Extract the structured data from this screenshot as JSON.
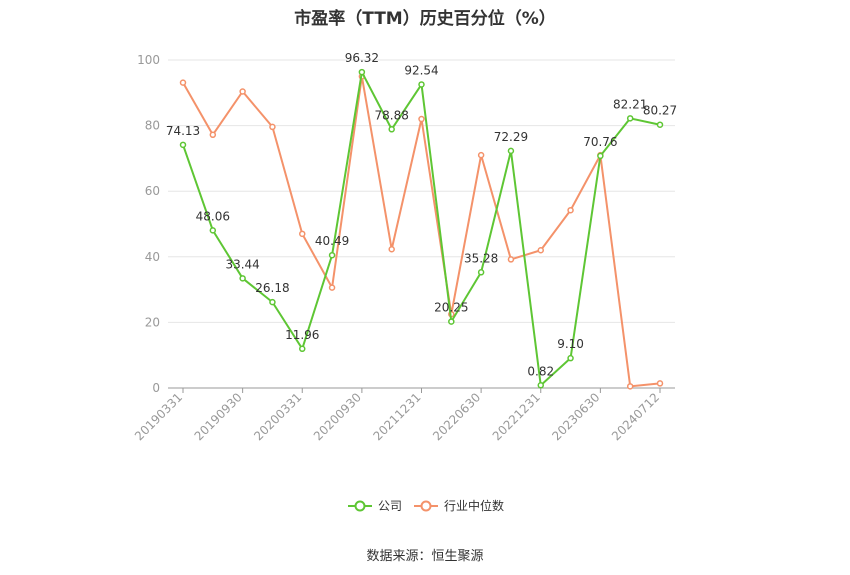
{
  "chart_data": {
    "type": "line",
    "title": "市盈率（TTM）历史百分位（%）",
    "source": "数据来源：恒生聚源",
    "ylim": [
      0,
      100
    ],
    "yticks": [
      "0",
      "20",
      "40",
      "60",
      "80",
      "100"
    ],
    "xtick_labels": [
      "20190331",
      "20190930",
      "20200331",
      "20200930",
      "20211231",
      "20220630",
      "20221231",
      "20230630",
      "20240712"
    ],
    "xtick_indices": [
      0,
      2,
      4,
      6,
      8,
      10,
      12,
      14,
      16
    ],
    "series": [
      {
        "name": "公司",
        "color": "#5ec634",
        "values": [
          74.13,
          48.06,
          33.44,
          26.18,
          11.96,
          40.49,
          96.32,
          78.88,
          92.54,
          20.25,
          35.28,
          72.29,
          0.82,
          9.1,
          70.76,
          82.21,
          80.27
        ],
        "labels": [
          "74.13",
          "48.06",
          "33.44",
          "26.18",
          "11.96",
          "40.49",
          "96.32",
          "78.88",
          "92.54",
          "20.25",
          "35.28",
          "72.29",
          "0.82",
          "9.10",
          "70.76",
          "82.21",
          "80.27"
        ]
      },
      {
        "name": "行业中位数",
        "color": "#f4926a",
        "values": [
          93.1,
          77.2,
          90.4,
          79.6,
          47.0,
          30.6,
          95.0,
          42.3,
          82.0,
          22.5,
          71.0,
          39.2,
          42.0,
          54.2,
          71.0,
          0.5,
          1.4
        ]
      }
    ]
  }
}
